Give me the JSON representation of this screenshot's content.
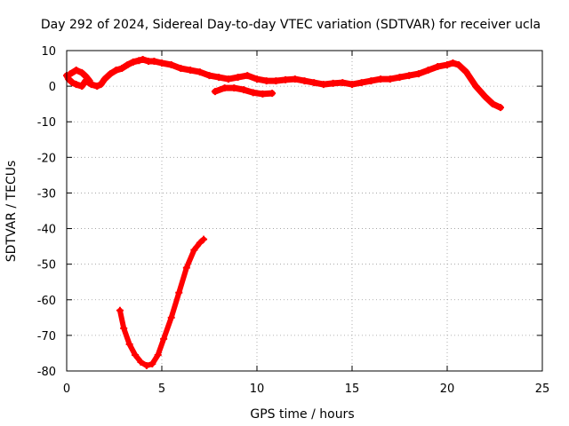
{
  "chart_data": {
    "type": "scatter",
    "title": "Day 292 of 2024, Sidereal Day-to-day VTEC variation (SDTVAR) for receiver ucla",
    "xlabel": "GPS time / hours",
    "ylabel": "SDTVAR / TECUs",
    "xlim": [
      0,
      25
    ],
    "ylim": [
      -80,
      10
    ],
    "xticks": [
      0,
      5,
      10,
      15,
      20,
      25
    ],
    "yticks": [
      10,
      0,
      -10,
      -20,
      -30,
      -40,
      -50,
      -60,
      -70,
      -80
    ],
    "grid": true,
    "marker_color": "#ff0000",
    "series": [
      {
        "name": "main-track",
        "x": [
          0.0,
          0.1,
          0.3,
          0.5,
          0.8,
          1.0,
          1.3,
          1.6,
          1.8,
          2.0,
          2.3,
          2.6,
          2.9,
          3.2,
          3.5,
          3.8,
          4.0,
          4.3,
          4.6,
          5.0,
          5.5,
          6.0,
          6.5,
          7.0,
          7.5,
          8.0,
          8.5,
          9.0,
          9.5,
          10.0,
          10.5,
          11.0,
          11.5,
          12.0,
          12.5,
          13.0,
          13.5,
          14.0,
          14.5,
          15.0,
          15.5,
          16.0,
          16.5,
          17.0,
          17.5,
          18.0,
          18.5,
          19.0,
          19.5,
          20.0,
          20.3,
          20.6,
          21.0,
          21.5,
          22.0,
          22.4,
          22.8
        ],
        "y": [
          3.0,
          2.0,
          1.0,
          0.5,
          0.0,
          1.5,
          0.5,
          0.0,
          0.5,
          2.0,
          3.5,
          4.5,
          5.0,
          6.0,
          6.8,
          7.2,
          7.5,
          7.0,
          7.0,
          6.5,
          6.0,
          5.0,
          4.5,
          4.0,
          3.0,
          2.5,
          2.0,
          2.5,
          3.0,
          2.0,
          1.5,
          1.5,
          1.8,
          2.0,
          1.5,
          1.0,
          0.5,
          0.8,
          1.0,
          0.5,
          1.0,
          1.5,
          2.0,
          2.0,
          2.5,
          3.0,
          3.5,
          4.5,
          5.5,
          6.0,
          6.5,
          6.0,
          4.0,
          0.0,
          -3.0,
          -5.0,
          -6.0
        ]
      },
      {
        "name": "small-arc",
        "x": [
          0.2,
          0.5,
          0.8,
          1.0,
          1.2
        ],
        "y": [
          3.5,
          4.5,
          3.8,
          2.8,
          1.5
        ]
      },
      {
        "name": "secondary-track",
        "x": [
          7.8,
          8.3,
          8.8,
          9.3,
          9.8,
          10.3,
          10.8
        ],
        "y": [
          -1.5,
          -0.5,
          -0.5,
          -1.0,
          -1.8,
          -2.2,
          -2.0
        ]
      },
      {
        "name": "deep-excursion",
        "x": [
          2.8,
          3.0,
          3.3,
          3.6,
          3.9,
          4.2,
          4.5,
          4.8,
          5.1,
          5.5,
          5.9,
          6.3,
          6.7,
          7.0,
          7.2
        ],
        "y": [
          -63,
          -68,
          -72.5,
          -75.5,
          -77.5,
          -78.5,
          -78,
          -75.5,
          -71,
          -65,
          -58,
          -51,
          -46,
          -44,
          -43
        ]
      }
    ]
  }
}
